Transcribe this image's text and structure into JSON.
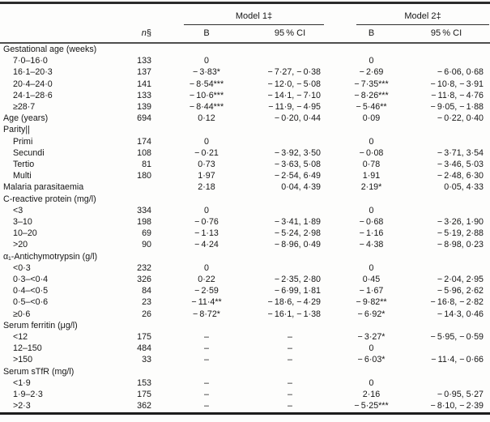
{
  "table": {
    "spanners": {
      "model1": "Model 1‡",
      "model2": "Model 2‡"
    },
    "headers": {
      "n": "n",
      "n_marker": "§",
      "b1": "B",
      "ci1": "95 % CI",
      "b2": "B",
      "ci2": "95 % CI"
    },
    "rows": [
      {
        "label": "Gestational age (weeks)",
        "indent": 0,
        "n": "",
        "b1": "",
        "ci1": "",
        "b2": "",
        "ci2": ""
      },
      {
        "label": "7·0–16·0",
        "indent": 1,
        "n": "133",
        "b1": "0",
        "ci1": "",
        "b2": "0",
        "ci2": ""
      },
      {
        "label": "16·1–20·3",
        "indent": 1,
        "n": "137",
        "b1": "− 3·83*",
        "ci1": "− 7·27, − 0·38",
        "b2": "− 2·69",
        "ci2": "− 6·06, 0·68"
      },
      {
        "label": "20·4–24·0",
        "indent": 1,
        "n": "141",
        "b1": "− 8·54***",
        "ci1": "− 12·0, − 5·08",
        "b2": "− 7·35***",
        "ci2": "− 10·8, − 3·91"
      },
      {
        "label": "24·1–28·6",
        "indent": 1,
        "n": "133",
        "b1": "− 10·6***",
        "ci1": "− 14·1, − 7·10",
        "b2": "− 8·26***",
        "ci2": "− 11·8, − 4·76"
      },
      {
        "label": "≥28·7",
        "indent": 1,
        "n": "139",
        "b1": "− 8·44***",
        "ci1": "− 11·9, − 4·95",
        "b2": "− 5·46**",
        "ci2": "− 9·05, − 1·88"
      },
      {
        "label": "Age (years)",
        "indent": 0,
        "n": "694",
        "b1": "0·12",
        "ci1": "− 0·20, 0·44",
        "b2": "0·09",
        "ci2": "− 0·22, 0·40"
      },
      {
        "label": "Parity||",
        "indent": 0,
        "n": "",
        "b1": "",
        "ci1": "",
        "b2": "",
        "ci2": ""
      },
      {
        "label": "Primi",
        "indent": 1,
        "n": "174",
        "b1": "0",
        "ci1": "",
        "b2": "0",
        "ci2": ""
      },
      {
        "label": "Secundi",
        "indent": 1,
        "n": "108",
        "b1": "− 0·21",
        "ci1": "− 3·92, 3·50",
        "b2": "− 0·08",
        "ci2": "− 3·71, 3·54"
      },
      {
        "label": "Tertio",
        "indent": 1,
        "n": "81",
        "b1": "0·73",
        "ci1": "− 3·63, 5·08",
        "b2": "0·78",
        "ci2": "− 3·46, 5·03"
      },
      {
        "label": "Multi",
        "indent": 1,
        "n": "180",
        "b1": "1·97",
        "ci1": "− 2·54, 6·49",
        "b2": "1·91",
        "ci2": "− 2·48, 6·30"
      },
      {
        "label": "Malaria parasitaemia",
        "indent": 0,
        "n": "",
        "b1": "2·18",
        "ci1": "0·04, 4·39",
        "b2": "2·19*",
        "ci2": "0·05, 4·33"
      },
      {
        "label": "C-reactive protein (mg/l)",
        "indent": 0,
        "n": "",
        "b1": "",
        "ci1": "",
        "b2": "",
        "ci2": ""
      },
      {
        "label": "<3",
        "indent": 1,
        "n": "334",
        "b1": "0",
        "ci1": "",
        "b2": "0",
        "ci2": ""
      },
      {
        "label": "3–10",
        "indent": 1,
        "n": "198",
        "b1": "− 0·76",
        "ci1": "− 3·41, 1·89",
        "b2": "− 0·68",
        "ci2": "− 3·26, 1·90"
      },
      {
        "label": "10–20",
        "indent": 1,
        "n": "69",
        "b1": "− 1·13",
        "ci1": "− 5·24, 2·98",
        "b2": "− 1·16",
        "ci2": "− 5·19, 2·88"
      },
      {
        "label": ">20",
        "indent": 1,
        "n": "90",
        "b1": "− 4·24",
        "ci1": "− 8·96, 0·49",
        "b2": "− 4·38",
        "ci2": "− 8·98, 0·23"
      },
      {
        "label": "α₁-Antichymotrypsin (g/l)",
        "indent": 0,
        "n": "",
        "b1": "",
        "ci1": "",
        "b2": "",
        "ci2": ""
      },
      {
        "label": "<0·3",
        "indent": 1,
        "n": "232",
        "b1": "0",
        "ci1": "",
        "b2": "0",
        "ci2": ""
      },
      {
        "label": "0·3–<0·4",
        "indent": 1,
        "n": "326",
        "b1": "0·22",
        "ci1": "− 2·35, 2·80",
        "b2": "0·45",
        "ci2": "− 2·04, 2·95"
      },
      {
        "label": "0·4–<0·5",
        "indent": 1,
        "n": "84",
        "b1": "− 2·59",
        "ci1": "− 6·99, 1·81",
        "b2": "− 1·67",
        "ci2": "− 5·96, 2·62"
      },
      {
        "label": "0·5–<0·6",
        "indent": 1,
        "n": "23",
        "b1": "− 11·4**",
        "ci1": "− 18·6, − 4·29",
        "b2": "− 9·82**",
        "ci2": "− 16·8, − 2·82"
      },
      {
        "label": "≥0·6",
        "indent": 1,
        "n": "26",
        "b1": "− 8·72*",
        "ci1": "− 16·1, − 1·38",
        "b2": "− 6·92*",
        "ci2": "− 14·3, 0·46"
      },
      {
        "label": "Serum ferritin (μg/l)",
        "indent": 0,
        "n": "",
        "b1": "",
        "ci1": "",
        "b2": "",
        "ci2": ""
      },
      {
        "label": "<12",
        "indent": 1,
        "n": "175",
        "b1": "–",
        "ci1": "–",
        "b2": "− 3·27*",
        "ci2": "− 5·95, − 0·59"
      },
      {
        "label": "12–150",
        "indent": 1,
        "n": "484",
        "b1": "–",
        "ci1": "–",
        "b2": "0",
        "ci2": ""
      },
      {
        "label": ">150",
        "indent": 1,
        "n": "33",
        "b1": "–",
        "ci1": "–",
        "b2": "− 6·03*",
        "ci2": "− 11·4, − 0·66"
      },
      {
        "label": "Serum sTfR (mg/l)",
        "indent": 0,
        "n": "",
        "b1": "",
        "ci1": "",
        "b2": "",
        "ci2": ""
      },
      {
        "label": "<1·9",
        "indent": 1,
        "n": "153",
        "b1": "–",
        "ci1": "–",
        "b2": "0",
        "ci2": ""
      },
      {
        "label": "1·9–2·3",
        "indent": 1,
        "n": "175",
        "b1": "–",
        "ci1": "–",
        "b2": "2·16",
        "ci2": "− 0·95, 5·27"
      },
      {
        "label": ">2·3",
        "indent": 1,
        "n": "362",
        "b1": "–",
        "ci1": "–",
        "b2": "− 5·25***",
        "ci2": "− 8·10, − 2·39"
      }
    ]
  }
}
